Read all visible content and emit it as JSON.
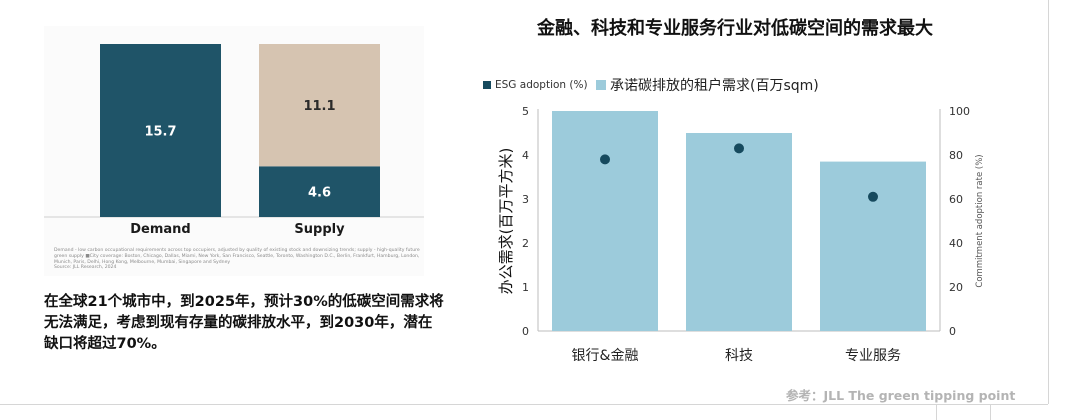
{
  "left": {
    "note": "Demand - low carbon occupational requirements across top occupiers, adjusted by quality of existing stock and downsizing trends; supply - high-quality future green supply ■City coverage: Boston, Chicago, Dallas, Miami, New York, San Francisco, Seattle, Toronto, Washington D.C., Berlin, Frankfurt, Hamburg, London, Munich, Paris, Delhi, Hong Kong, Melbourne, Mumbai, Singapore and Sydney",
    "source": "Source: JLL Research, 2024",
    "summary": "在全球21个城市中，到2025年，预计30%的低碳空间需求将无法满足，考虑到现有存量的碳排放水平，到2030年，潜在缺口将超过70%。"
  },
  "right": {
    "title": "金融、科技和专业服务行业对低碳空间的需求最大"
  },
  "footer": {
    "source": "参考：JLL The green tipping point"
  },
  "colors": {
    "dark_teal": "#1f5468",
    "beige": "#d6c4b1",
    "light_blue": "#9ccbdb",
    "dot": "#164a5e"
  },
  "chart_data": [
    {
      "type": "bar",
      "stacked": true,
      "categories": [
        "Demand",
        "Supply"
      ],
      "segments": [
        {
          "category": "Demand",
          "value": 15.7,
          "color": "#1f5468",
          "label": "15.7"
        },
        {
          "category": "Supply",
          "value": 4.6,
          "color": "#1f5468",
          "label": "4.6"
        },
        {
          "category": "Supply",
          "value": 11.1,
          "color": "#d6c4b1",
          "label": "11.1"
        }
      ],
      "ylim": [
        0,
        15.7
      ]
    },
    {
      "type": "bar",
      "categories": [
        "银行&金融",
        "科技",
        "专业服务"
      ],
      "series": [
        {
          "name": "承诺碳排放的租户需求(百万sqm)",
          "type": "bar",
          "axis": "left",
          "values": [
            5.0,
            4.5,
            3.85
          ]
        },
        {
          "name": "ESG adoption (%)",
          "type": "scatter",
          "axis": "right",
          "values": [
            78,
            83,
            61
          ]
        }
      ],
      "ylabel": "办公需求(百万平方米)",
      "ylim": [
        0,
        5
      ],
      "yticks": [
        0,
        1,
        2,
        3,
        4,
        5
      ],
      "y2label": "Commitment adoption rate (%)",
      "y2lim": [
        0,
        100
      ],
      "y2ticks": [
        0,
        20,
        40,
        60,
        80,
        100
      ],
      "legend": "top-left"
    }
  ]
}
